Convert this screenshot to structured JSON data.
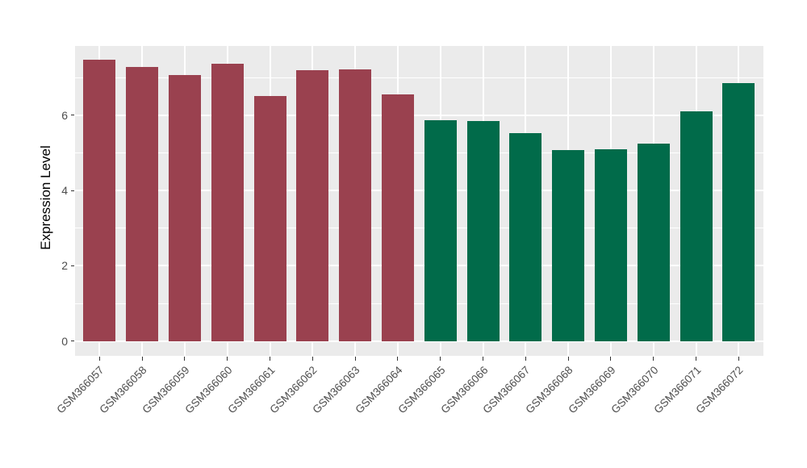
{
  "chart_data": {
    "type": "bar",
    "title": "",
    "xlabel": "",
    "ylabel": "Expression Level",
    "categories": [
      "GSM366057",
      "GSM366058",
      "GSM366059",
      "GSM366060",
      "GSM366061",
      "GSM366062",
      "GSM366063",
      "GSM366064",
      "GSM366065",
      "GSM366066",
      "GSM366067",
      "GSM366068",
      "GSM366069",
      "GSM366070",
      "GSM366071",
      "GSM366072"
    ],
    "values": [
      7.48,
      7.28,
      7.06,
      7.36,
      6.51,
      7.19,
      7.22,
      6.55,
      5.87,
      5.85,
      5.53,
      5.07,
      5.1,
      5.24,
      6.1,
      6.86
    ],
    "bar_colors": [
      "#9A414F",
      "#9A414F",
      "#9A414F",
      "#9A414F",
      "#9A414F",
      "#9A414F",
      "#9A414F",
      "#9A414F",
      "#016B4A",
      "#016B4A",
      "#016B4A",
      "#016B4A",
      "#016B4A",
      "#016B4A",
      "#016B4A",
      "#016B4A"
    ],
    "y_ticks": [
      "0",
      "2",
      "4",
      "6"
    ],
    "y_tick_values": [
      0,
      2,
      4,
      6
    ],
    "y_minor_values": [
      1,
      3,
      5,
      7
    ],
    "ylim": [
      -0.39,
      7.86
    ],
    "grid": "on",
    "legend": "none",
    "colors": {
      "group_left": "#9A414F",
      "group_right": "#016B4A",
      "panel_background": "#EBEBEB",
      "grid_major": "#FFFFFF",
      "grid_minor": "#FFFFFF",
      "tick_label": "#4d4d4d",
      "axis_title": "#000000",
      "figure_background": "#FFFFFF"
    }
  }
}
